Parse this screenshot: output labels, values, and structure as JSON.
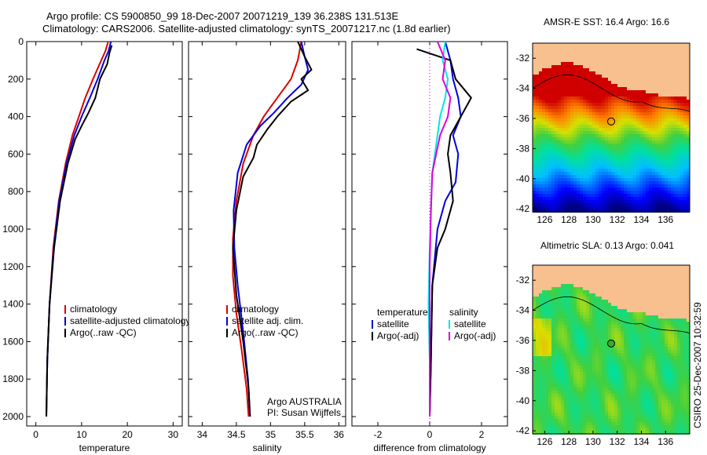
{
  "header": {
    "line1": "Argo profile: CS 5900850_99 18-Dec-2007 20071219_139 36.238S 131.513E",
    "line2": "Climatology: CARS2006. Satellite-adjusted climatology: synTS_20071217.nc (1.8d earlier)"
  },
  "credit": "CSIRO 25-Dec-2007 10:32:59",
  "colors": {
    "climatology": "#dd0000",
    "satellite": "#0000dd",
    "argo": "#000000",
    "diff_temperature": "#00e5e5",
    "diff_salinity": "#dd00dd",
    "land": "#f7c08e"
  },
  "chart_data": [
    {
      "type": "line",
      "panel": "temperature",
      "xlabel": "temperature",
      "ylabel": "",
      "xlim": [
        -2,
        32
      ],
      "ylim": [
        2050,
        0
      ],
      "xticks": [
        0,
        10,
        20,
        30
      ],
      "yticks": [
        0,
        200,
        400,
        600,
        800,
        1000,
        1200,
        1400,
        1600,
        1800,
        2000
      ],
      "legend": [
        "climatology",
        "satellite-adjusted climatology",
        "Argo(..raw -QC)"
      ],
      "legend_placement": "lower-right",
      "series": [
        {
          "name": "climatology",
          "x": [
            15.8,
            15.2,
            14.3,
            12.5,
            10.8,
            9.4,
            8.0,
            6.5,
            5.0,
            3.8,
            3.0,
            2.5,
            2.3
          ],
          "y": [
            0,
            50,
            100,
            200,
            300,
            400,
            500,
            650,
            850,
            1100,
            1400,
            1700,
            2000
          ]
        },
        {
          "name": "satellite-adjusted climatology",
          "x": [
            16.4,
            15.9,
            15.0,
            13.5,
            11.8,
            10.0,
            8.4,
            6.7,
            5.1,
            3.9,
            3.0,
            2.5,
            2.3
          ],
          "y": [
            0,
            50,
            100,
            200,
            300,
            400,
            500,
            650,
            850,
            1100,
            1400,
            1700,
            2000
          ]
        },
        {
          "name": "Argo(..raw -QC)",
          "x": [
            16.6,
            16.1,
            15.6,
            14.0,
            13.0,
            11.5,
            10.0,
            8.6,
            7.0,
            5.3,
            4.0,
            3.0,
            2.5,
            2.3
          ],
          "y": [
            20,
            60,
            120,
            200,
            300,
            380,
            450,
            520,
            650,
            850,
            1100,
            1400,
            1700,
            2000
          ]
        }
      ]
    },
    {
      "type": "line",
      "panel": "salinity",
      "xlabel": "salinity",
      "xlim": [
        33.8,
        36.1
      ],
      "ylim": [
        2050,
        0
      ],
      "xticks": [
        34,
        34.5,
        35,
        35.5,
        36
      ],
      "legend": [
        "climatology",
        "satellite adj. clim.",
        "Argo(..raw -QC)"
      ],
      "legend_placement": "lower-right",
      "annotation": [
        "Argo AUSTRALIA",
        "PI: Susan Wijffels"
      ],
      "series": [
        {
          "name": "climatology",
          "x": [
            35.45,
            35.4,
            35.3,
            35.1,
            34.9,
            34.75,
            34.6,
            34.5,
            34.45,
            34.45,
            34.5,
            34.58,
            34.65,
            34.68
          ],
          "y": [
            0,
            100,
            200,
            300,
            400,
            500,
            650,
            850,
            1050,
            1250,
            1450,
            1650,
            1850,
            2000
          ]
        },
        {
          "name": "satellite adj. clim.",
          "x": [
            35.45,
            35.5,
            35.55,
            35.45,
            35.25,
            35.05,
            34.85,
            34.65,
            34.52,
            34.46,
            34.47,
            34.52,
            34.6,
            34.67,
            34.7
          ],
          "y": [
            0,
            80,
            150,
            230,
            300,
            380,
            450,
            550,
            700,
            900,
            1100,
            1300,
            1550,
            1800,
            2000
          ]
        },
        {
          "name": "Argo(..raw -QC)",
          "x": [
            35.4,
            35.5,
            35.6,
            35.45,
            35.55,
            35.3,
            35.1,
            34.95,
            34.8,
            34.75,
            34.6,
            34.5,
            34.45,
            34.5,
            34.6,
            34.68,
            34.7
          ],
          "y": [
            0,
            80,
            150,
            200,
            260,
            320,
            400,
            470,
            550,
            620,
            720,
            900,
            1100,
            1350,
            1600,
            1850,
            2000
          ]
        }
      ]
    },
    {
      "type": "line",
      "panel": "difference",
      "xlabel": "difference from climatology",
      "xlim": [
        -3,
        3
      ],
      "ylim": [
        2050,
        0
      ],
      "xticks": [
        -2,
        0,
        2
      ],
      "legend_groups": [
        {
          "heading": "temperature",
          "items": [
            "satellite",
            "Argo(-adj)"
          ]
        },
        {
          "heading": "salinity",
          "items": [
            "satellite",
            "Argo(-adj)"
          ]
        }
      ],
      "legend_placement": "lower-center",
      "series": [
        {
          "name": "temperature satellite",
          "group": "temperature",
          "x": [
            0.6,
            0.8,
            0.9,
            1.1,
            1.2,
            0.9,
            1.1,
            1.0,
            0.6,
            0.3,
            0.1,
            0.05,
            0.0
          ],
          "y": [
            0,
            100,
            200,
            300,
            400,
            500,
            600,
            750,
            850,
            1000,
            1300,
            1700,
            2000
          ]
        },
        {
          "name": "temperature Argo(-adj)",
          "group": "temperature",
          "x": [
            -0.5,
            0.8,
            1.0,
            1.6,
            1.2,
            0.8,
            0.7,
            0.8,
            0.9,
            0.6,
            0.3,
            0.1,
            0.05,
            0.0
          ],
          "y": [
            40,
            100,
            200,
            300,
            400,
            500,
            600,
            700,
            850,
            1000,
            1100,
            1300,
            1700,
            2000
          ]
        },
        {
          "name": "salinity satellite",
          "group": "salinity",
          "x": [
            0.6,
            0.5,
            0.7,
            0.6,
            0.4,
            0.3,
            0.1,
            0.05,
            0.0,
            -0.05,
            0.0,
            0.0
          ],
          "y": [
            0,
            100,
            200,
            300,
            400,
            500,
            700,
            900,
            1100,
            1400,
            1700,
            2000
          ]
        },
        {
          "name": "salinity Argo(-adj)",
          "group": "salinity",
          "x": [
            0.3,
            0.6,
            0.5,
            0.8,
            0.7,
            0.4,
            0.1,
            0.05,
            0.0,
            0.0
          ],
          "y": [
            0,
            100,
            200,
            300,
            400,
            500,
            700,
            900,
            1200,
            2000
          ]
        }
      ]
    },
    {
      "type": "heatmap",
      "panel": "sst-map",
      "title": "AMSR-E SST: 16.4 Argo: 16.6",
      "xticks": [
        126,
        128,
        130,
        132,
        134,
        136
      ],
      "yticks": [
        -32,
        -34,
        -36,
        -38,
        -40,
        -42
      ],
      "xlim": [
        125,
        138
      ],
      "ylim": [
        -42.2,
        -31
      ],
      "float_position": {
        "lon": 131.5,
        "lat": -36.2
      }
    },
    {
      "type": "heatmap",
      "panel": "sla-map",
      "title": "Altimetric SLA: 0.13 Argo: 0.041",
      "xticks": [
        126,
        128,
        130,
        132,
        134,
        136
      ],
      "yticks": [
        -32,
        -34,
        -36,
        -38,
        -40,
        -42
      ],
      "xlim": [
        125,
        138
      ],
      "ylim": [
        -42.2,
        -31
      ],
      "float_position": {
        "lon": 131.5,
        "lat": -36.2
      }
    }
  ]
}
